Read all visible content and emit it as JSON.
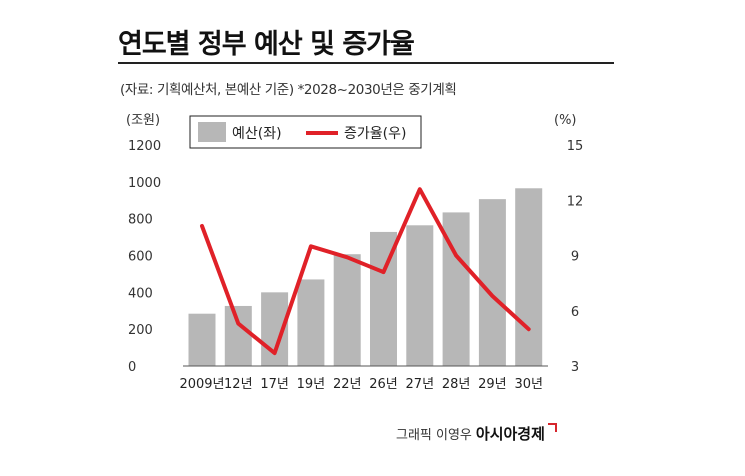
{
  "title": "연도별 정부 예산 및 증가율",
  "subtitle": "(자료: 기획예산처, 본예산 기준) *2028~2030년은 중기계획",
  "credit": {
    "text": "그래픽 이영우",
    "brand": "아시아경제"
  },
  "chart_data": {
    "type": "bar",
    "categories": [
      "2009년",
      "12년",
      "17년",
      "19년",
      "22년",
      "26년",
      "27년",
      "28년",
      "29년",
      "30년"
    ],
    "series": [
      {
        "name": "예산(좌)",
        "type": "bar",
        "axis": "left",
        "color": "#b7b7b7",
        "values": [
          284,
          326,
          400,
          470,
          607,
          728,
          764,
          834,
          906,
          965
        ]
      },
      {
        "name": "증가율(우)",
        "type": "line",
        "axis": "right",
        "color": "#e02128",
        "values": [
          10.6,
          5.3,
          3.7,
          9.5,
          8.9,
          8.1,
          12.6,
          9.0,
          6.8,
          5.0
        ]
      }
    ],
    "left_axis": {
      "unit": "(조원)",
      "ylim": [
        0,
        1200
      ],
      "ticks": [
        0,
        200,
        400,
        600,
        800,
        1000,
        1200
      ]
    },
    "right_axis": {
      "unit": "(%)",
      "ylim": [
        3,
        15
      ],
      "ticks": [
        3,
        6,
        9,
        12,
        15
      ]
    },
    "legend": {
      "position": "top-left"
    },
    "grid": false
  }
}
